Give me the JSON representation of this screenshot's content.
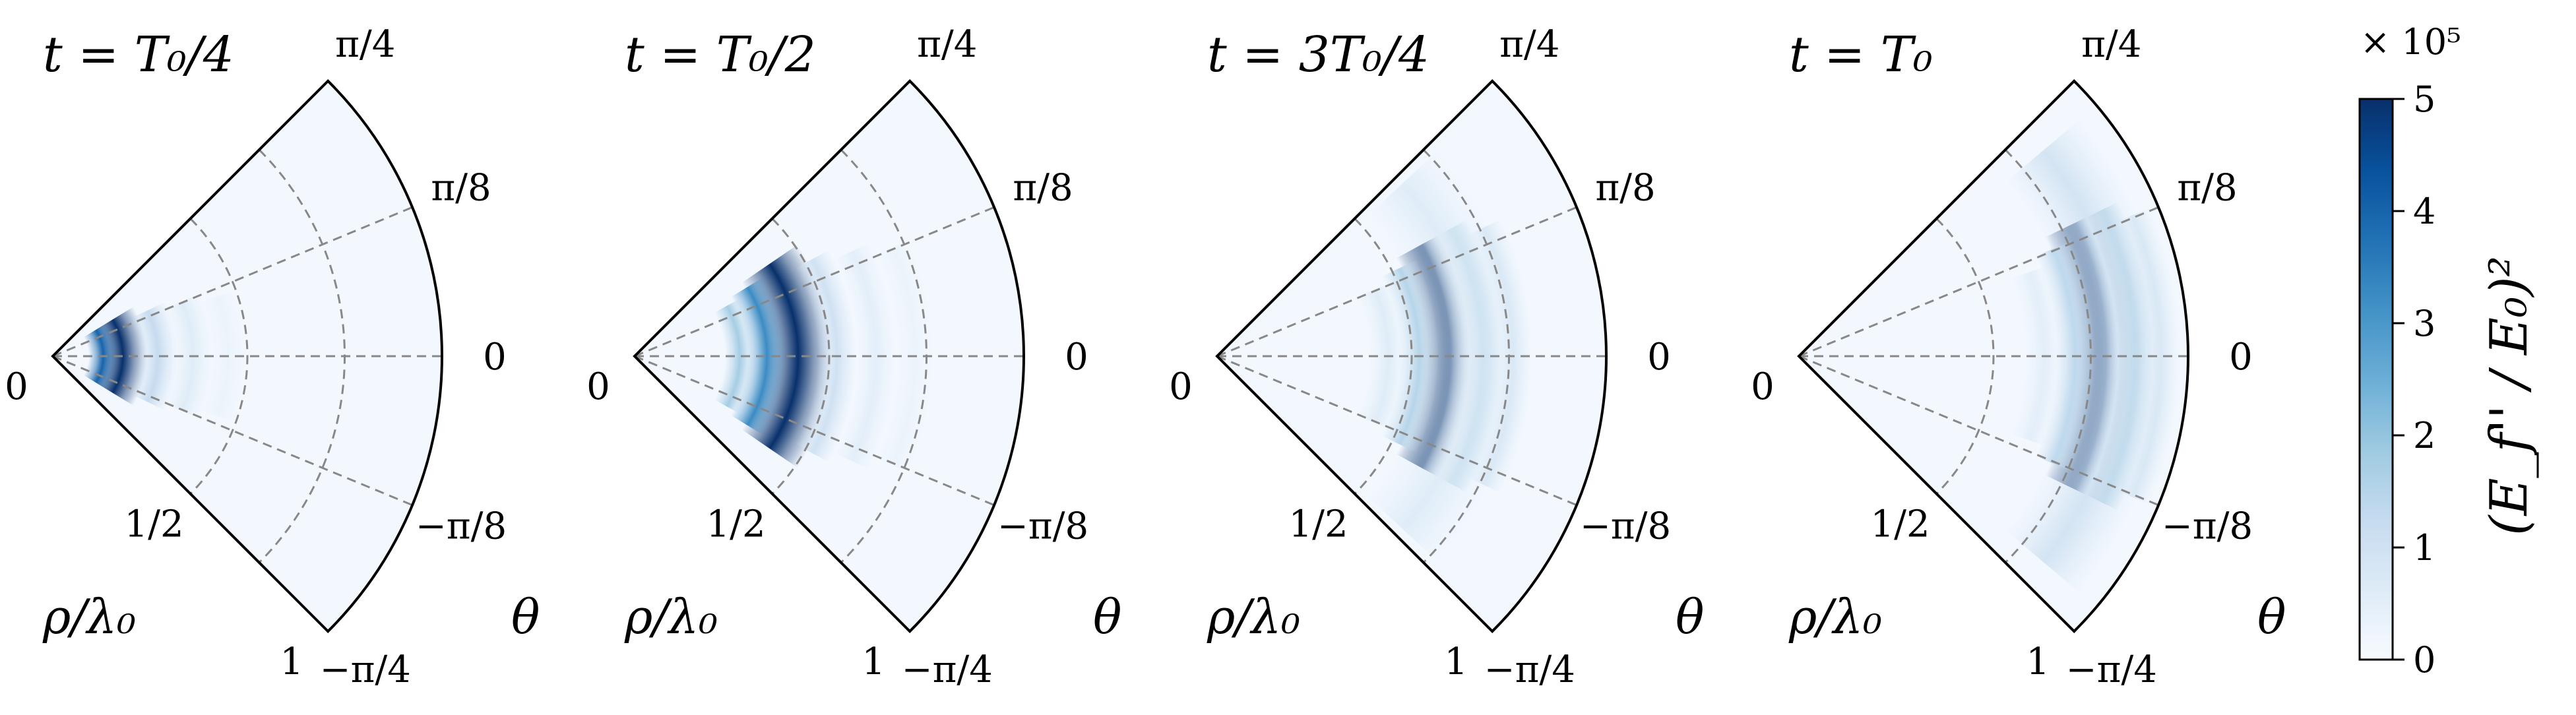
{
  "chart_data": {
    "type": "heatmap",
    "projection": "polar-sector",
    "colormap": "Blues",
    "theta_ticks": [
      "π/4",
      "π/8",
      "0",
      "−π/8",
      "−π/4"
    ],
    "theta_range": [
      -0.7854,
      0.7854
    ],
    "rho_ticks": [
      "0",
      "1/2",
      "1"
    ],
    "rho_range": [
      0,
      1
    ],
    "rho_label": "ρ/λ₀",
    "theta_label": "θ",
    "grid": true,
    "panels": [
      {
        "title": "t = T₀/4",
        "features": [
          {
            "rho": 0.18,
            "halfwidth": 0.025,
            "theta_span": 0.55,
            "intensity": 1.0
          },
          {
            "rho": 0.13,
            "halfwidth": 0.015,
            "theta_span": 0.55,
            "intensity": 0.8
          },
          {
            "rho": 0.27,
            "halfwidth": 0.02,
            "theta_span": 0.45,
            "intensity": 0.25
          },
          {
            "rho": 0.36,
            "halfwidth": 0.02,
            "theta_span": 0.4,
            "intensity": 0.12
          },
          {
            "rho": 0.45,
            "halfwidth": 0.02,
            "theta_span": 0.35,
            "intensity": 0.06
          }
        ]
      },
      {
        "title": "t = T₀/2",
        "features": [
          {
            "rho": 0.42,
            "halfwidth": 0.035,
            "theta_span": 0.6,
            "intensity": 1.0
          },
          {
            "rho": 0.34,
            "halfwidth": 0.02,
            "theta_span": 0.55,
            "intensity": 0.65
          },
          {
            "rho": 0.27,
            "halfwidth": 0.015,
            "theta_span": 0.5,
            "intensity": 0.35
          },
          {
            "rho": 0.52,
            "halfwidth": 0.02,
            "theta_span": 0.5,
            "intensity": 0.2
          },
          {
            "rho": 0.62,
            "halfwidth": 0.02,
            "theta_span": 0.45,
            "intensity": 0.1
          },
          {
            "rho": 0.72,
            "halfwidth": 0.02,
            "theta_span": 0.4,
            "intensity": 0.06
          }
        ]
      },
      {
        "title": "t = 3T₀/4",
        "features": [
          {
            "rho": 0.6,
            "halfwidth": 0.03,
            "theta_span": 0.5,
            "intensity": 1.0
          },
          {
            "rho": 0.68,
            "halfwidth": 0.02,
            "theta_span": 0.5,
            "intensity": 0.35
          },
          {
            "rho": 0.52,
            "halfwidth": 0.02,
            "theta_span": 0.45,
            "intensity": 0.3
          },
          {
            "rho": 0.76,
            "halfwidth": 0.02,
            "theta_span": 0.45,
            "intensity": 0.15
          },
          {
            "rho": 0.44,
            "halfwidth": 0.02,
            "theta_span": 0.4,
            "intensity": 0.12
          },
          {
            "rho": 0.65,
            "halfwidth": 0.05,
            "theta_span": 0.75,
            "intensity": 0.12
          }
        ]
      },
      {
        "title": "t = T₀",
        "features": [
          {
            "rho": 0.79,
            "halfwidth": 0.035,
            "theta_span": 0.45,
            "intensity": 1.0
          },
          {
            "rho": 0.86,
            "halfwidth": 0.02,
            "theta_span": 0.45,
            "intensity": 0.35
          },
          {
            "rho": 0.71,
            "halfwidth": 0.02,
            "theta_span": 0.4,
            "intensity": 0.28
          },
          {
            "rho": 0.93,
            "halfwidth": 0.02,
            "theta_span": 0.4,
            "intensity": 0.15
          },
          {
            "rho": 0.63,
            "halfwidth": 0.02,
            "theta_span": 0.35,
            "intensity": 0.1
          },
          {
            "rho": 0.82,
            "halfwidth": 0.05,
            "theta_span": 0.7,
            "intensity": 0.18
          }
        ]
      }
    ],
    "colorbar": {
      "label": "(E_f'' / E₀)²",
      "multiplier": "× 10⁵",
      "ticks": [
        "0",
        "1",
        "2",
        "3",
        "4",
        "5"
      ],
      "range": [
        0,
        5
      ],
      "color_low": "#f7fbff",
      "color_high": "#08306b"
    }
  }
}
